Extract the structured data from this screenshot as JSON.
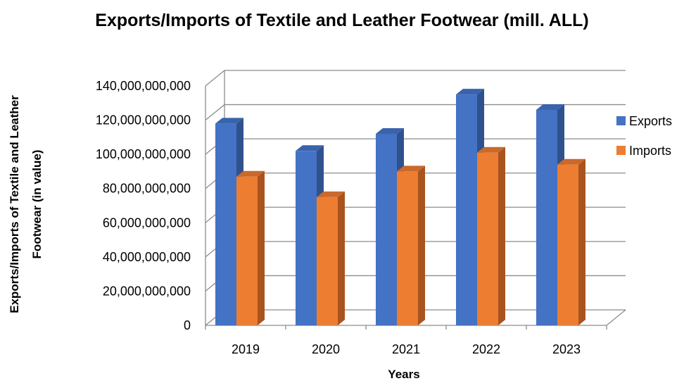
{
  "chart_data": {
    "type": "bar",
    "title": "Exports/Imports of Textile and Leather Footwear (mill. ALL)",
    "xlabel": "Years",
    "ylabel_lines": [
      "Exports/Imports of Textile and Leather",
      "Footwear (in value)"
    ],
    "categories": [
      "2019",
      "2020",
      "2021",
      "2022",
      "2023"
    ],
    "series": [
      {
        "name": "Exports",
        "values": [
          118000000000,
          102000000000,
          112000000000,
          135000000000,
          126000000000
        ],
        "color": "#4472C4",
        "side_color": "#2F528F",
        "top_color": "#3A63AD"
      },
      {
        "name": "Imports",
        "values": [
          87000000000,
          75000000000,
          90000000000,
          101000000000,
          94000000000
        ],
        "color": "#ED7D31",
        "side_color": "#A9531F",
        "top_color": "#C9692A"
      }
    ],
    "yticks": [
      "0",
      "20,000,000,000",
      "40,000,000,000",
      "60,000,000,000",
      "80,000,000,000",
      "100,000,000,000",
      "120,000,000,000",
      "140,000,000,000"
    ],
    "ylim": [
      0,
      140000000000
    ],
    "grid": true,
    "legend_position": "right",
    "style": "3d-clustered-column"
  }
}
